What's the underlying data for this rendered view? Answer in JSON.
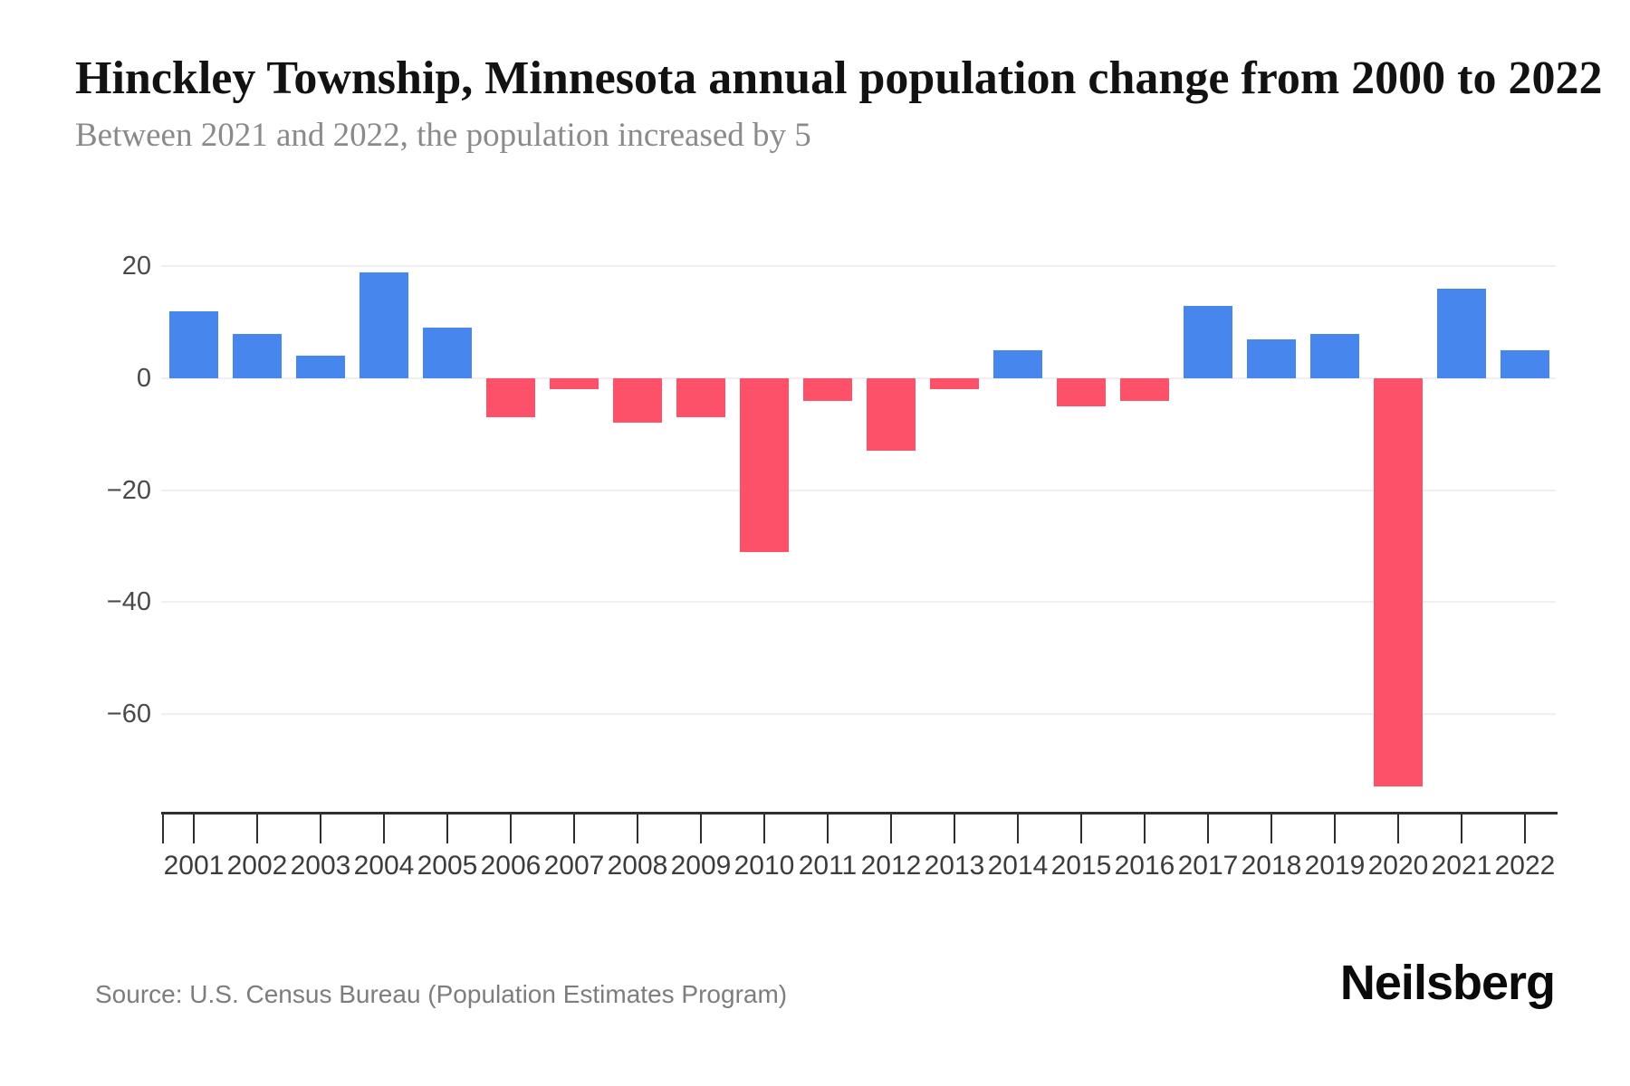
{
  "header": {
    "title": "Hinckley Township, Minnesota annual population change from 2000 to 2022",
    "subtitle": "Between 2021 and 2022, the population increased by 5"
  },
  "footer": {
    "source": "Source: U.S. Census Bureau (Population Estimates Program)",
    "brand": "Neilsberg"
  },
  "chart_data": {
    "type": "bar",
    "title": "Hinckley Township, Minnesota annual population change from 2000 to 2022",
    "categories": [
      "2001",
      "2002",
      "2003",
      "2004",
      "2005",
      "2006",
      "2007",
      "2008",
      "2009",
      "2010",
      "2011",
      "2012",
      "2013",
      "2014",
      "2015",
      "2016",
      "2017",
      "2018",
      "2019",
      "2020",
      "2021",
      "2022"
    ],
    "values": [
      12,
      8,
      4,
      19,
      9,
      -7,
      -2,
      -8,
      -7,
      -31,
      -4,
      -13,
      -2,
      5,
      -5,
      -4,
      13,
      7,
      8,
      -73,
      16,
      5
    ],
    "xlabel": "",
    "ylabel": "",
    "ylim": [
      -77.5,
      26
    ],
    "yticks": [
      {
        "value": 20,
        "label": "20"
      },
      {
        "value": 0,
        "label": "0"
      },
      {
        "value": -20,
        "label": "−20"
      },
      {
        "value": -40,
        "label": "−40"
      },
      {
        "value": -60,
        "label": "−60"
      }
    ],
    "grid": "horizontal",
    "legend": "none",
    "colors": {
      "positive": "#4787ED",
      "negative": "#FC5168"
    }
  }
}
